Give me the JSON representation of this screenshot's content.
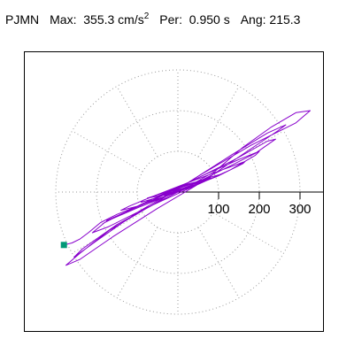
{
  "header": {
    "station": "PJMN",
    "max_label": "Max:",
    "max_value": "355.3 cm/s",
    "max_exp": "2",
    "per_label": "Per:",
    "per_value": "0.950 s",
    "ang_label": "Ang:",
    "ang_value": "215.3"
  },
  "colors": {
    "trace": "#8800cc",
    "end_marker": "#009977",
    "grid": "#999999",
    "axis": "#000000"
  },
  "chart_data": {
    "type": "scatter",
    "subtype": "polar-orbit",
    "title": "PJMN  Max: 355.3 cm/s2  Per: 0.950 s  Ang: 215.3",
    "rings": [
      100,
      200,
      300
    ],
    "ring_tick_labels": [
      "100",
      "200",
      "300"
    ],
    "spoke_angles_deg": [
      0,
      30,
      60,
      90,
      120,
      150,
      180,
      210,
      240,
      270,
      300,
      330
    ],
    "grid": true,
    "max_amplitude": 355.3,
    "orbit_major_angle_deg": 35.3,
    "orbit_points": [
      [
        0,
        0
      ],
      [
        20,
        8
      ],
      [
        45,
        25
      ],
      [
        90,
        50
      ],
      [
        160,
        110
      ],
      [
        230,
        160
      ],
      [
        290,
        195
      ],
      [
        325,
        200
      ],
      [
        290,
        170
      ],
      [
        180,
        115
      ],
      [
        60,
        45
      ],
      [
        -60,
        -30
      ],
      [
        -170,
        -95
      ],
      [
        -240,
        -150
      ],
      [
        -275,
        -180
      ],
      [
        -240,
        -165
      ],
      [
        -160,
        -110
      ],
      [
        -50,
        -40
      ],
      [
        60,
        25
      ],
      [
        170,
        100
      ],
      [
        245,
        150
      ],
      [
        265,
        165
      ],
      [
        220,
        145
      ],
      [
        130,
        90
      ],
      [
        20,
        20
      ],
      [
        -100,
        -50
      ],
      [
        -200,
        -120
      ],
      [
        -255,
        -160
      ],
      [
        -235,
        -140
      ],
      [
        -150,
        -80
      ],
      [
        -40,
        -20
      ],
      [
        80,
        40
      ],
      [
        190,
        95
      ],
      [
        240,
        130
      ],
      [
        220,
        125
      ],
      [
        140,
        80
      ],
      [
        30,
        25
      ],
      [
        -90,
        -30
      ],
      [
        -180,
        -75
      ],
      [
        -210,
        -100
      ],
      [
        -170,
        -85
      ],
      [
        -80,
        -40
      ],
      [
        30,
        10
      ],
      [
        130,
        55
      ],
      [
        190,
        90
      ],
      [
        200,
        100
      ],
      [
        150,
        80
      ],
      [
        60,
        40
      ],
      [
        -40,
        -10
      ],
      [
        -130,
        -50
      ],
      [
        -175,
        -70
      ],
      [
        -160,
        -65
      ],
      [
        -90,
        -35
      ],
      [
        10,
        5
      ],
      [
        110,
        45
      ],
      [
        160,
        70
      ],
      [
        165,
        75
      ],
      [
        110,
        55
      ],
      [
        30,
        25
      ],
      [
        -60,
        -10
      ],
      [
        -120,
        -35
      ],
      [
        -140,
        -45
      ],
      [
        -100,
        -35
      ],
      [
        -30,
        -10
      ],
      [
        50,
        20
      ],
      [
        100,
        40
      ],
      [
        110,
        45
      ],
      [
        75,
        35
      ],
      [
        15,
        15
      ],
      [
        -45,
        -5
      ],
      [
        -85,
        -20
      ],
      [
        -90,
        -25
      ],
      [
        -55,
        -15
      ],
      [
        0,
        5
      ],
      [
        55,
        25
      ],
      [
        80,
        35
      ],
      [
        65,
        30
      ],
      [
        25,
        20
      ],
      [
        -20,
        5
      ],
      [
        -60,
        -10
      ],
      [
        -75,
        -15
      ],
      [
        -50,
        -10
      ],
      [
        -10,
        5
      ],
      [
        35,
        20
      ],
      [
        60,
        25
      ],
      [
        50,
        20
      ],
      [
        15,
        10
      ],
      [
        -25,
        0
      ],
      [
        -50,
        -10
      ],
      [
        -45,
        -10
      ],
      [
        -15,
        0
      ],
      [
        20,
        10
      ],
      [
        40,
        15
      ],
      [
        35,
        12
      ],
      [
        10,
        5
      ],
      [
        -20,
        -2
      ],
      [
        -35,
        -8
      ],
      [
        -30,
        -8
      ],
      [
        -5,
        0
      ],
      [
        20,
        8
      ],
      [
        30,
        12
      ],
      [
        20,
        8
      ],
      [
        0,
        3
      ],
      [
        -20,
        -5
      ],
      [
        -10,
        -2
      ],
      [
        10,
        5
      ],
      [
        0,
        0
      ],
      [
        -30,
        -10
      ],
      [
        -60,
        -20
      ],
      [
        -100,
        -35
      ],
      [
        -150,
        -55
      ],
      [
        -190,
        -75
      ],
      [
        -220,
        -100
      ],
      [
        -240,
        -115
      ],
      [
        -260,
        -125
      ],
      [
        -280,
        -130
      ]
    ],
    "end_point": [
      -280,
      -130
    ]
  }
}
